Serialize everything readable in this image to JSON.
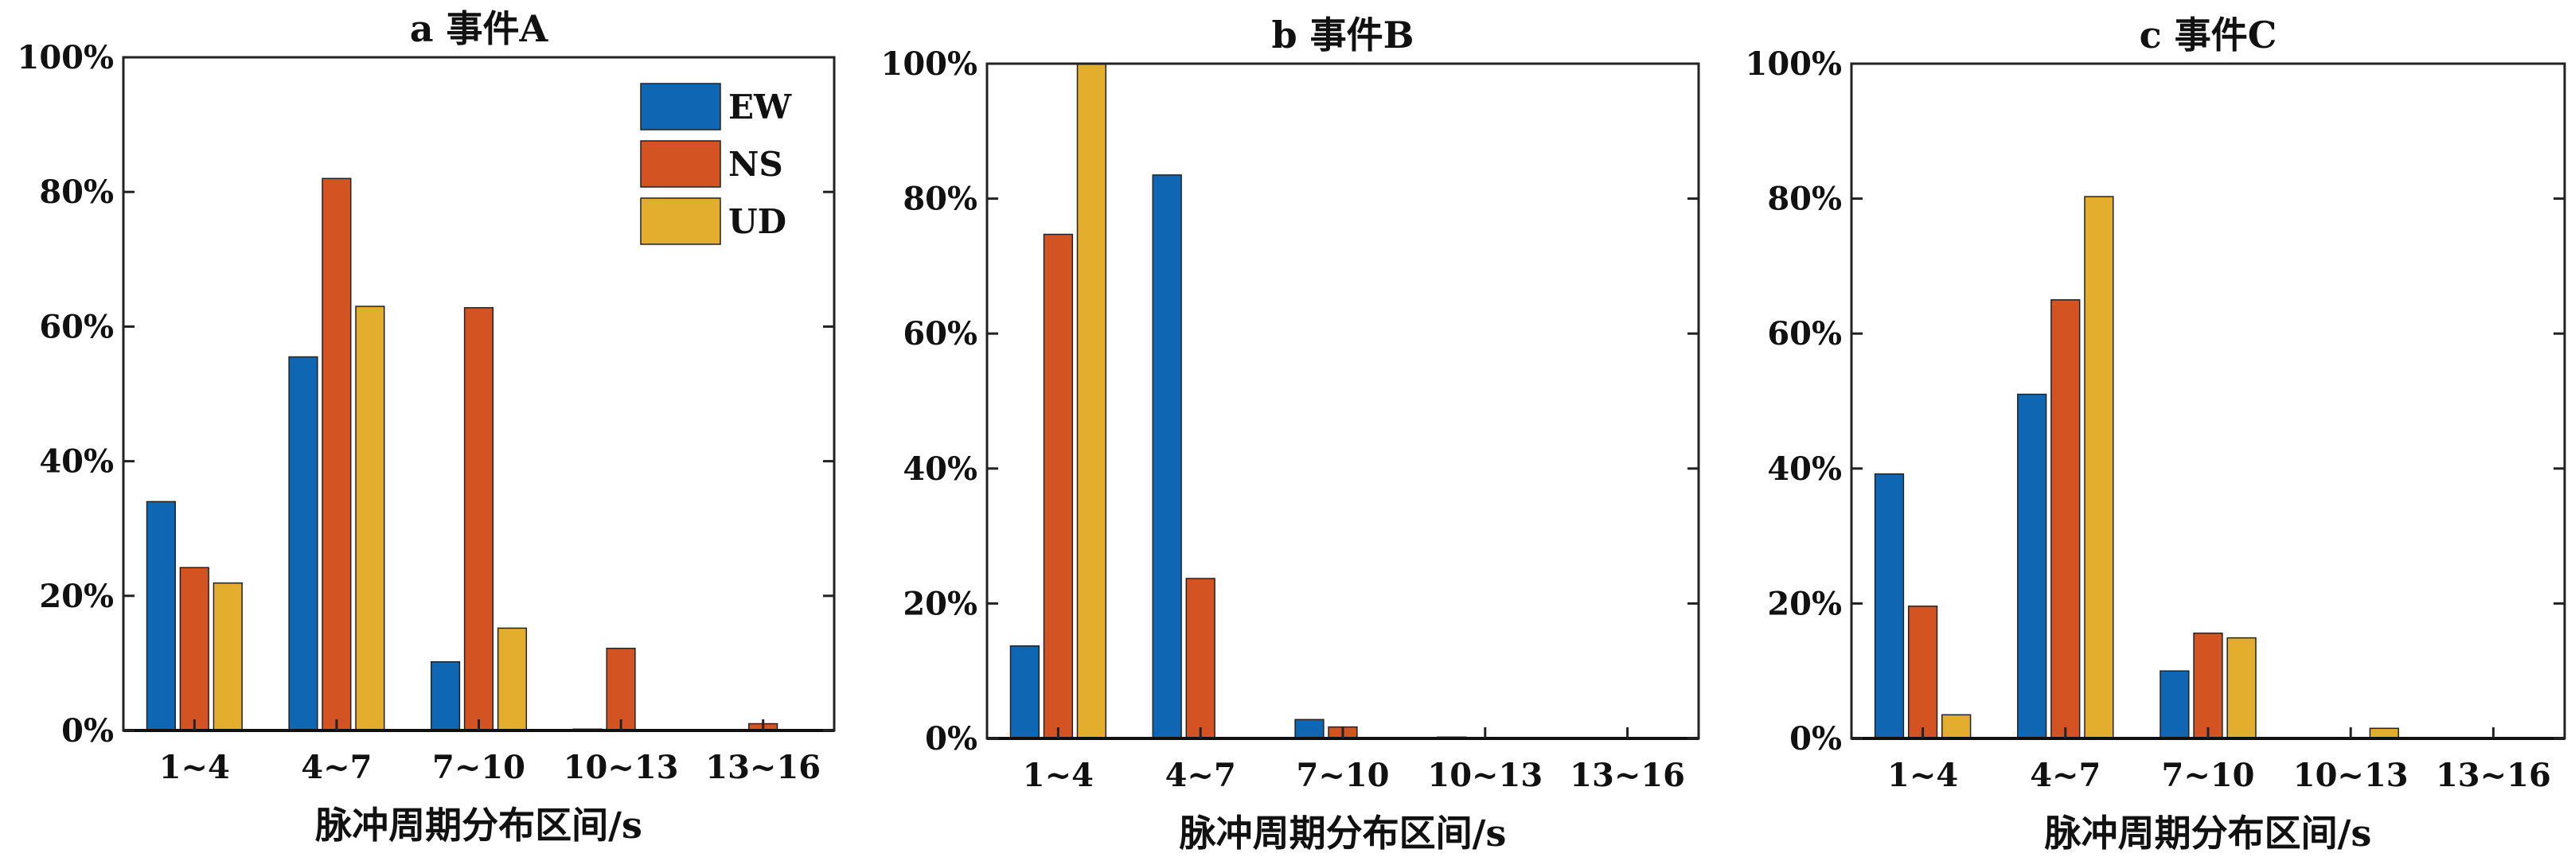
{
  "colors": {
    "EW": "#0f67b4",
    "NS": "#d35323",
    "UD": "#e3ad2e"
  },
  "chart_data": [
    {
      "type": "bar",
      "title": "a 事件A",
      "xlabel": "脉冲周期分布区间/s",
      "ylabel": "",
      "ylim": [
        0,
        100
      ],
      "yticks": [
        "0%",
        "20%",
        "40%",
        "60%",
        "80%",
        "100%"
      ],
      "categories": [
        "1~4",
        "4~7",
        "7~10",
        "10~13",
        "13~16"
      ],
      "series": [
        {
          "name": "EW",
          "values": [
            34,
            55.5,
            10.2,
            0.2,
            0.1
          ]
        },
        {
          "name": "NS",
          "values": [
            24.2,
            82,
            62.8,
            12.2,
            1
          ]
        },
        {
          "name": "UD",
          "values": [
            21.9,
            63,
            15.2,
            0,
            0
          ]
        }
      ],
      "legend": "top-right"
    },
    {
      "type": "bar",
      "title": "b 事件B",
      "xlabel": "脉冲周期分布区间/s",
      "ylabel": "",
      "ylim": [
        0,
        100
      ],
      "yticks": [
        "0%",
        "20%",
        "40%",
        "60%",
        "80%",
        "100%"
      ],
      "categories": [
        "1~4",
        "4~7",
        "7~10",
        "10~13",
        "13~16"
      ],
      "series": [
        {
          "name": "EW",
          "values": [
            13.7,
            83.5,
            2.8,
            0.2,
            0.1
          ]
        },
        {
          "name": "NS",
          "values": [
            74.7,
            23.7,
            1.7,
            0.1,
            0
          ]
        },
        {
          "name": "UD",
          "values": [
            100,
            0,
            0,
            0,
            0
          ]
        }
      ]
    },
    {
      "type": "bar",
      "title": "c 事件C",
      "xlabel": "脉冲周期分布区间/s",
      "ylabel": "",
      "ylim": [
        0,
        100
      ],
      "yticks": [
        "0%",
        "20%",
        "40%",
        "60%",
        "80%",
        "100%"
      ],
      "categories": [
        "1~4",
        "4~7",
        "7~10",
        "10~13",
        "13~16"
      ],
      "series": [
        {
          "name": "EW",
          "values": [
            39.2,
            51,
            10,
            0.1,
            0
          ]
        },
        {
          "name": "NS",
          "values": [
            19.6,
            65,
            15.6,
            0.1,
            0
          ]
        },
        {
          "name": "UD",
          "values": [
            3.5,
            80.3,
            14.9,
            1.5,
            0
          ]
        }
      ]
    }
  ]
}
